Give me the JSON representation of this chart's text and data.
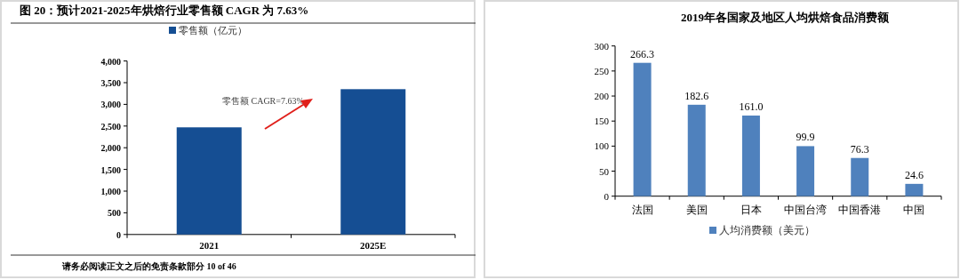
{
  "chart_data": [
    {
      "type": "bar",
      "title": "图 20：预计2021-2025年烘焙行业零售额 CAGR 为 7.63%",
      "categories": [
        "2021",
        "2025E"
      ],
      "series": [
        {
          "name": "零售额（亿元）",
          "color": "#154e93",
          "values": [
            2470,
            3350
          ]
        }
      ],
      "ylim": [
        0,
        4000
      ],
      "yticks": [
        {
          "value": 0,
          "label": "0"
        },
        {
          "value": 500,
          "label": "500"
        },
        {
          "value": 1000,
          "label": "1,000"
        },
        {
          "value": 1500,
          "label": "1,500"
        },
        {
          "value": 2000,
          "label": "2,000"
        },
        {
          "value": 2500,
          "label": "2,500"
        },
        {
          "value": 3000,
          "label": "3,000"
        },
        {
          "value": 3500,
          "label": "3,500"
        },
        {
          "value": 4000,
          "label": "4,000"
        }
      ],
      "legend": "top",
      "annotations": [
        "零售额 CAGR=7.63%",
        "请务必阅读正文之后的免责条款部分 10 of 46"
      ]
    },
    {
      "type": "bar",
      "title": "2019年各国家及地区人均烘焙食品消费额",
      "categories": [
        "法国",
        "美国",
        "日本",
        "中国台湾",
        "中国香港",
        "中国"
      ],
      "series": [
        {
          "name": "人均消费额（美元）",
          "color": "#4f81bd",
          "values": [
            266.3,
            182.6,
            161.0,
            99.9,
            76.3,
            24.6
          ],
          "value_labels": [
            "266.3",
            "182.6",
            "161.0",
            "99.9",
            "76.3",
            "24.6"
          ]
        }
      ],
      "ylim": [
        0,
        300
      ],
      "yticks": [
        0,
        50,
        100,
        150,
        200,
        250,
        300
      ],
      "legend": "bottom"
    }
  ]
}
